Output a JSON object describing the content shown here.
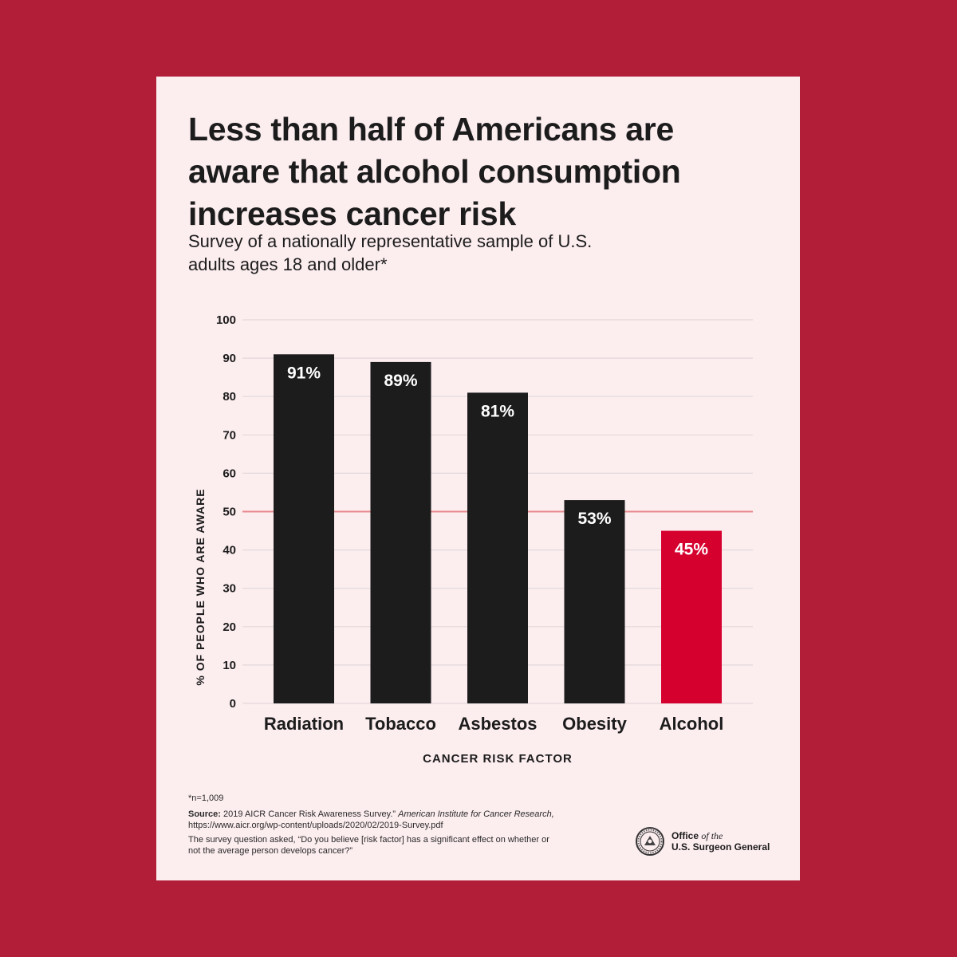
{
  "header": {
    "title": "Less than half of Americans are aware that alcohol consumption increases cancer risk",
    "subtitle": "Survey of a nationally representative sample of U.S. adults ages 18 and older*"
  },
  "chart_data": {
    "type": "bar",
    "title": "Less than half of Americans are aware that alcohol consumption increases cancer risk",
    "xlabel": "CANCER RISK FACTOR",
    "ylabel": "% OF PEOPLE WHO ARE AWARE",
    "categories": [
      "Radiation",
      "Tobacco",
      "Asbestos",
      "Obesity",
      "Alcohol"
    ],
    "values": [
      91,
      89,
      81,
      53,
      45
    ],
    "data_labels": [
      "91%",
      "89%",
      "81%",
      "53%",
      "45%"
    ],
    "highlight_index": 4,
    "reference_line": 50,
    "ylim": [
      0,
      100
    ],
    "yticks": [
      "0",
      "10",
      "20",
      "30",
      "40",
      "50",
      "60",
      "70",
      "80",
      "90",
      "100"
    ],
    "grid": true,
    "colors": {
      "bar": "#1c1c1c",
      "highlight": "#d6002f",
      "reference": "#e8898d",
      "grid": "#e2d8da"
    }
  },
  "footer": {
    "n_note": "*n=1,009",
    "source_label": "Source:",
    "source_text": " 2019 AICR Cancer Risk Awareness Survey.” ",
    "source_italic": "American Institute for Cancer Research,",
    "source_url": " https://www.aicr.org/wp-content/uploads/2020/02/2019-Survey.pdf",
    "question": "The survey question asked, “Do you believe [risk factor] has a significant effect on whether or not the average person develops cancer?”"
  },
  "logo": {
    "line1": "Office",
    "line1_italic": "of the",
    "line2": "U.S. Surgeon General"
  },
  "colors": {
    "background": "#b21e38",
    "card": "#fcedef"
  }
}
